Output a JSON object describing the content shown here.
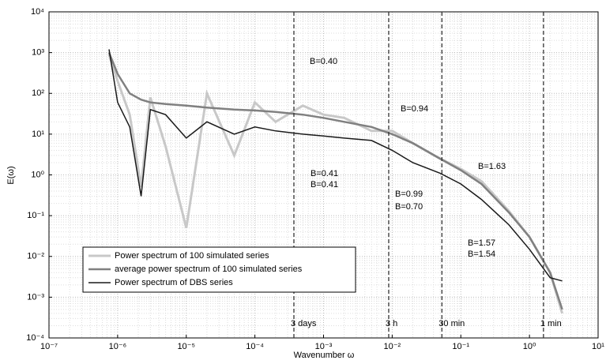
{
  "chart_data": {
    "type": "line",
    "xlabel": "Wavenumber ω",
    "ylabel": "E(ω)",
    "log_x": true,
    "log_y": true,
    "grid": true,
    "legend": "lower left",
    "xlim": [
      1e-07,
      10
    ],
    "xticks": [
      {
        "value": 1e-07,
        "label": "10⁻⁷"
      },
      {
        "value": 1e-06,
        "label": "10⁻⁶"
      },
      {
        "value": 1e-05,
        "label": "10⁻⁵"
      },
      {
        "value": 0.0001,
        "label": "10⁻⁴"
      },
      {
        "value": 0.001,
        "label": "10⁻³"
      },
      {
        "value": 0.01,
        "label": "10⁻²"
      },
      {
        "value": 0.1,
        "label": "10⁻¹"
      },
      {
        "value": 1,
        "label": "10⁰"
      },
      {
        "value": 10,
        "label": "10¹"
      }
    ],
    "ylim": [
      0.0001,
      10000.0
    ],
    "yticks": [
      {
        "value": 0.0001,
        "label": "10⁻⁴"
      },
      {
        "value": 0.001,
        "label": "10⁻³"
      },
      {
        "value": 0.01,
        "label": "10⁻²"
      },
      {
        "value": 0.1,
        "label": "10⁻¹"
      },
      {
        "value": 1,
        "label": "10⁰"
      },
      {
        "value": 10,
        "label": "10¹"
      },
      {
        "value": 100,
        "label": "10²"
      },
      {
        "value": 1000,
        "label": "10³"
      },
      {
        "value": 10000,
        "label": "10⁴"
      }
    ],
    "x": [
      7.5e-07,
      1e-06,
      1.5e-06,
      2.2e-06,
      3e-06,
      5e-06,
      1e-05,
      2e-05,
      5e-05,
      0.0001,
      0.0002,
      0.0005,
      0.001,
      0.002,
      0.005,
      0.01,
      0.02,
      0.05,
      0.1,
      0.2,
      0.5,
      1,
      2,
      3
    ],
    "series": [
      {
        "name": "Power spectrum of 100 simulated series",
        "color": "#c8c8c8",
        "width": 3,
        "values": [
          900,
          200,
          30,
          0.5,
          80,
          5,
          0.05,
          100,
          3,
          60,
          20,
          50,
          30,
          25,
          12,
          12,
          6,
          2.5,
          1.4,
          0.7,
          0.13,
          0.03,
          0.004,
          0.0004
        ]
      },
      {
        "name": "average power spectrum of 100 simulated series",
        "color": "#808080",
        "width": 2.5,
        "values": [
          1000,
          300,
          100,
          70,
          60,
          55,
          50,
          45,
          40,
          38,
          35,
          30,
          25,
          20,
          15,
          10,
          6,
          2.5,
          1.3,
          0.6,
          0.12,
          0.03,
          0.004,
          0.0005
        ]
      },
      {
        "name": "Power spectrum of DBS series",
        "color": "#1a1a1a",
        "width": 1.5,
        "values": [
          1200,
          60,
          15,
          0.3,
          40,
          30,
          8,
          20,
          10,
          15,
          12,
          10,
          9,
          8,
          7,
          4,
          2,
          1.1,
          0.6,
          0.25,
          0.06,
          0.015,
          0.003,
          0.0025
        ]
      }
    ],
    "vlines": [
      {
        "value": 0.00037,
        "label": "3 days"
      },
      {
        "value": 0.0089,
        "label": "3 h"
      },
      {
        "value": 0.053,
        "label": "30 min"
      },
      {
        "value": 1.6,
        "label": "1 min"
      }
    ],
    "annotations": [
      {
        "text": "B=0.40",
        "color": "#999999"
      },
      {
        "text": "B=0.94",
        "color": "#999999"
      },
      {
        "text": "B=1.63",
        "color": "#999999"
      },
      {
        "text": "B=0.41",
        "color": "#000000"
      },
      {
        "text": "B=0.41",
        "color": "#000000"
      },
      {
        "text": "B=0.99",
        "color": "#000000"
      },
      {
        "text": "B=0.70",
        "color": "#000000"
      },
      {
        "text": "B=1.57",
        "color": "#000000"
      },
      {
        "text": "B=1.54",
        "color": "#000000"
      }
    ]
  }
}
